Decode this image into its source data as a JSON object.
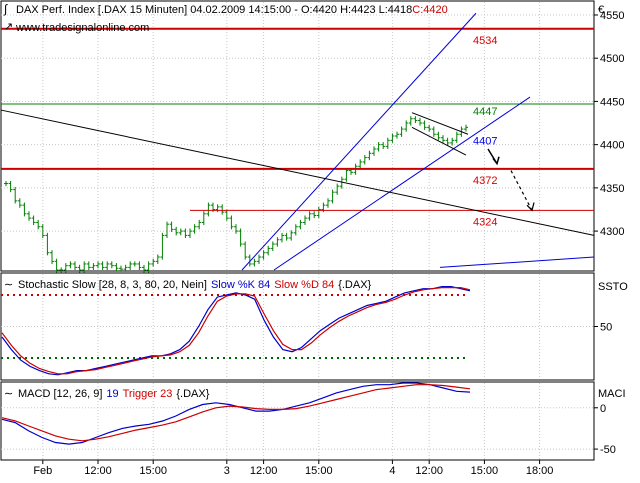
{
  "header": {
    "line1": "DAX Perf. Index [.DAX  15 Minuten] 04.02.2009 14:15:00 - O:4420 H:4423 L:4418",
    "close": "C:4420",
    "line2": "www.tradesignalonline.com"
  },
  "colors": {
    "background": "#ffffff",
    "grid": "#c8c8c8",
    "bars": "#008000",
    "support_resistance": "#cc0000",
    "channel": "#0000dd",
    "trendline": "#000000",
    "stoch_k": "#0000cc",
    "stoch_d": "#cc0000",
    "level_high": "#cc0000",
    "level_low": "#006600",
    "label_red": "#dd0000",
    "label_green": "#008000",
    "label_blue": "#0000ee"
  },
  "chart_data": [
    {
      "type": "line",
      "name": "price",
      "ylabel": "€",
      "ylim": [
        4255,
        4565
      ],
      "yticks": [
        4550,
        4500,
        4450,
        4400,
        4350,
        4300
      ],
      "xticks": [
        {
          "label": "Feb",
          "bar": 8
        },
        {
          "label": "12:00",
          "bar": 20
        },
        {
          "label": "15:00",
          "bar": 32
        },
        {
          "label": "3",
          "bar": 48
        },
        {
          "label": "12:00",
          "bar": 56
        },
        {
          "label": "15:00",
          "bar": 68
        },
        {
          "label": "4",
          "bar": 84
        },
        {
          "label": "12:00",
          "bar": 92
        },
        {
          "label": "15:00",
          "bar": 104
        },
        {
          "label": "18:00",
          "bar": 116
        }
      ],
      "bars_close": [
        4355,
        4348,
        4335,
        4330,
        4320,
        4315,
        4310,
        4305,
        4295,
        4275,
        4265,
        4255,
        4255,
        4260,
        4262,
        4258,
        4255,
        4262,
        4258,
        4260,
        4262,
        4258,
        4262,
        4260,
        4257,
        4256,
        4258,
        4262,
        4262,
        4258,
        4255,
        4262,
        4265,
        4270,
        4295,
        4308,
        4302,
        4298,
        4300,
        4295,
        4300,
        4305,
        4310,
        4320,
        4330,
        4325,
        4328,
        4322,
        4315,
        4305,
        4300,
        4285,
        4270,
        4262,
        4265,
        4270,
        4275,
        4280,
        4285,
        4290,
        4295,
        4292,
        4298,
        4305,
        4310,
        4315,
        4320,
        4318,
        4325,
        4330,
        4335,
        4345,
        4352,
        4360,
        4370,
        4368,
        4375,
        4380,
        4385,
        4390,
        4395,
        4400,
        4398,
        4405,
        4410,
        4412,
        4418,
        4425,
        4430,
        4428,
        4425,
        4420,
        4418,
        4412,
        4408,
        4405,
        4402,
        4405,
        4412,
        4418,
        4420
      ],
      "lines": [
        {
          "name": "resistance",
          "value": 4534,
          "label": "4534"
        },
        {
          "name": "resistance-minor",
          "value": 4447,
          "label": "4447"
        },
        {
          "name": "support",
          "value": 4372,
          "label": "4372"
        },
        {
          "name": "support-minor",
          "value": 4324,
          "label": "4324"
        }
      ],
      "annotations": [
        "4407"
      ]
    },
    {
      "type": "line",
      "title": "Stochastic Slow [28, 8, 3, 80, 20, Nein]",
      "ylabel": "SSTO",
      "ylim": [
        0,
        100
      ],
      "yticks": [
        50
      ],
      "levels": [
        80,
        20
      ],
      "series": [
        {
          "name": "Slow %K",
          "label": "Slow %K 84",
          "values": [
            40,
            28,
            18,
            12,
            8,
            5,
            4,
            6,
            8,
            8,
            10,
            12,
            14,
            16,
            18,
            20,
            22,
            22,
            24,
            28,
            36,
            50,
            66,
            78,
            80,
            82,
            80,
            76,
            56,
            40,
            28,
            26,
            30,
            38,
            46,
            52,
            58,
            62,
            66,
            70,
            72,
            74,
            78,
            82,
            84,
            86,
            86,
            88,
            88,
            86,
            84
          ]
        },
        {
          "name": "Slow %D",
          "label": "Slow %D 84",
          "values": [
            44,
            32,
            22,
            15,
            10,
            7,
            5,
            5,
            7,
            8,
            9,
            11,
            13,
            15,
            17,
            19,
            21,
            22,
            23,
            26,
            32,
            44,
            60,
            74,
            79,
            81,
            81,
            79,
            62,
            46,
            33,
            28,
            28,
            34,
            42,
            49,
            55,
            60,
            64,
            68,
            71,
            73,
            76,
            80,
            83,
            85,
            86,
            87,
            87,
            87,
            85
          ]
        }
      ],
      "legend": "Slow %K 84  Slow %D 84 {.DAX}"
    },
    {
      "type": "line",
      "title": "MACD [12, 26, 9]",
      "ylabel": "MACI",
      "ylim": [
        -62,
        30
      ],
      "yticks": [
        0,
        -50
      ],
      "series": [
        {
          "name": "MACD",
          "label": "19",
          "values": [
            -14,
            -18,
            -28,
            -36,
            -42,
            -44,
            -42,
            -36,
            -30,
            -25,
            -22,
            -20,
            -16,
            -10,
            -2,
            4,
            6,
            4,
            0,
            -4,
            -4,
            -2,
            2,
            6,
            12,
            18,
            22,
            26,
            28,
            28,
            30,
            30,
            28,
            24,
            20,
            19
          ]
        },
        {
          "name": "Trigger",
          "label": "Trigger 23",
          "values": [
            -12,
            -16,
            -22,
            -28,
            -34,
            -38,
            -40,
            -38,
            -35,
            -31,
            -27,
            -24,
            -21,
            -17,
            -11,
            -5,
            0,
            2,
            1,
            -1,
            -2,
            -2,
            -1,
            2,
            6,
            10,
            14,
            18,
            22,
            24,
            26,
            28,
            28,
            27,
            25,
            23
          ]
        }
      ],
      "legend": "19  Trigger 23 {.DAX}"
    }
  ],
  "panels": {
    "stoch": {
      "title": "Stochastic Slow [28, 8, 3, 80, 20, Nein]",
      "k_label": "Slow %K 84",
      "d_label": "Slow %D 84",
      "suffix": "{.DAX}",
      "axis_label": "SSTO"
    },
    "macd": {
      "title": "MACD [12, 26, 9]",
      "macd_label": "19",
      "trigger_label": "Trigger 23",
      "suffix": "{.DAX}",
      "axis_label": "MACI"
    }
  }
}
